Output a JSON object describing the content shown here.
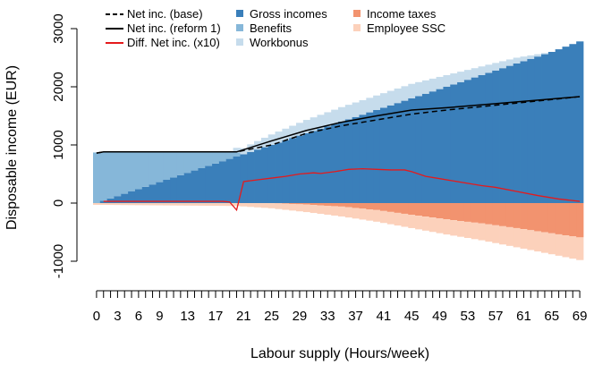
{
  "chart_data": {
    "type": "area",
    "xlabel": "Labour supply (Hours/week)",
    "ylabel": "Disposable income (EUR)",
    "xlim": [
      0,
      69
    ],
    "ylim": [
      -1000,
      3000
    ],
    "x_ticks": [
      0,
      3,
      6,
      9,
      13,
      17,
      21,
      25,
      29,
      33,
      37,
      41,
      45,
      49,
      53,
      57,
      61,
      65,
      69
    ],
    "y_ticks": [
      -1000,
      0,
      1000,
      2000,
      3000
    ],
    "grid": false,
    "legend_position": "top",
    "colors": {
      "gross": "#3a7fba",
      "benefits": "#86b7d9",
      "workbonus": "#c6dcec",
      "income_taxes": "#f2936f",
      "employee_ssc": "#fcd1bb",
      "net_base": "#000000",
      "net_reform": "#000000",
      "diff": "#e41a1c"
    },
    "legend": [
      {
        "label": "Net inc. (base)",
        "kind": "dashed-line",
        "color": "#000000"
      },
      {
        "label": "Gross incomes",
        "kind": "square",
        "color": "#3a7fba"
      },
      {
        "label": "Income taxes",
        "kind": "square",
        "color": "#f2936f"
      },
      {
        "label": "Net inc. (reform 1)",
        "kind": "solid-line",
        "color": "#000000"
      },
      {
        "label": "Benefits",
        "kind": "square",
        "color": "#86b7d9"
      },
      {
        "label": "Employee SSC",
        "kind": "square",
        "color": "#fcd1bb"
      },
      {
        "label": "Diff. Net inc. (x10)",
        "kind": "red-line",
        "color": "#e41a1c"
      },
      {
        "label": "Workbonus",
        "kind": "square",
        "color": "#c6dcec"
      }
    ],
    "series": [
      {
        "name": "Gross incomes",
        "x": [
          0,
          5,
          10,
          15,
          20,
          25,
          30,
          35,
          40,
          45,
          50,
          55,
          60,
          65,
          69
        ],
        "values": [
          0,
          200,
          400,
          600,
          800,
          1000,
          1200,
          1400,
          1600,
          1800,
          2000,
          2200,
          2400,
          2600,
          2780
        ]
      },
      {
        "name": "Benefits",
        "x": [
          0,
          5,
          10,
          15,
          20,
          21,
          69
        ],
        "values": [
          870,
          670,
          470,
          270,
          70,
          0,
          0
        ]
      },
      {
        "name": "Workbonus",
        "x": [
          0,
          19,
          20,
          22,
          25,
          30,
          35,
          40,
          45,
          50,
          55,
          60,
          64,
          65,
          69
        ],
        "values": [
          0,
          0,
          80,
          130,
          180,
          230,
          250,
          250,
          250,
          200,
          150,
          100,
          20,
          0,
          0
        ]
      },
      {
        "name": "Income taxes",
        "x": [
          0,
          25,
          30,
          35,
          40,
          45,
          50,
          55,
          60,
          65,
          69
        ],
        "values": [
          0,
          0,
          -25,
          -60,
          -120,
          -200,
          -280,
          -350,
          -430,
          -520,
          -590
        ]
      },
      {
        "name": "Employee SSC",
        "x": [
          0,
          20,
          25,
          30,
          35,
          40,
          45,
          50,
          55,
          60,
          65,
          69
        ],
        "values": [
          -30,
          -50,
          -90,
          -130,
          -170,
          -200,
          -230,
          -260,
          -290,
          -330,
          -360,
          -390
        ]
      },
      {
        "name": "Net inc. (base)",
        "x": [
          0,
          1,
          20,
          25,
          30,
          35,
          40,
          45,
          50,
          55,
          60,
          65,
          69
        ],
        "values": [
          860,
          880,
          880,
          1000,
          1200,
          1330,
          1430,
          1530,
          1600,
          1660,
          1720,
          1780,
          1830
        ]
      },
      {
        "name": "Net inc. (reform 1)",
        "x": [
          0,
          1,
          20,
          25,
          30,
          35,
          40,
          45,
          50,
          55,
          60,
          65,
          69
        ],
        "values": [
          860,
          880,
          880,
          1070,
          1250,
          1390,
          1500,
          1600,
          1640,
          1690,
          1740,
          1790,
          1830
        ]
      },
      {
        "name": "Diff. Net inc. (x10)",
        "x": [
          1,
          18,
          19,
          20,
          21,
          23,
          25,
          27,
          29,
          31,
          32,
          34,
          36,
          38,
          40,
          42,
          44,
          45,
          47,
          49,
          52,
          55,
          57,
          60,
          63,
          66,
          69
        ],
        "values": [
          30,
          30,
          20,
          -120,
          370,
          400,
          430,
          460,
          500,
          520,
          510,
          540,
          580,
          590,
          580,
          570,
          570,
          540,
          460,
          420,
          360,
          300,
          270,
          200,
          130,
          70,
          30
        ]
      }
    ]
  }
}
